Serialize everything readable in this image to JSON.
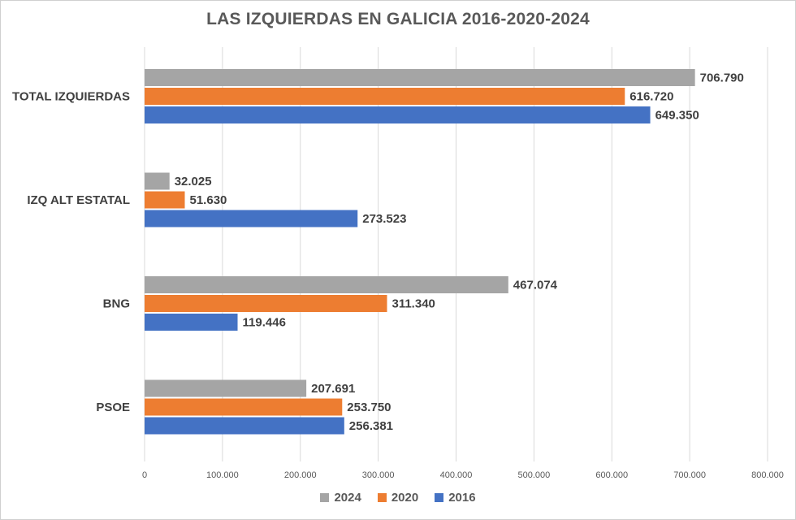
{
  "chart_data": {
    "type": "bar",
    "orientation": "horizontal",
    "title": "LAS IZQUIERDAS EN GALICIA 2016-2020-2024",
    "categories": [
      "TOTAL IZQUIERDAS",
      "IZQ ALT ESTATAL",
      "BNG",
      "PSOE"
    ],
    "series": [
      {
        "name": "2024",
        "color": "#a5a5a5",
        "values": [
          706790,
          32025,
          467074,
          207691
        ],
        "labels": [
          "706.790",
          "32.025",
          "467.074",
          "207.691"
        ]
      },
      {
        "name": "2020",
        "color": "#ed7d31",
        "values": [
          616720,
          51630,
          311340,
          253750
        ],
        "labels": [
          "616.720",
          "51.630",
          "311.340",
          "253.750"
        ]
      },
      {
        "name": "2016",
        "color": "#4472c4",
        "values": [
          649350,
          273523,
          119446,
          256381
        ],
        "labels": [
          "649.350",
          "273.523",
          "119.446",
          "256.381"
        ]
      }
    ],
    "xlim": [
      0,
      800000
    ],
    "xticks": [
      0,
      100000,
      200000,
      300000,
      400000,
      500000,
      600000,
      700000,
      800000
    ],
    "xtick_labels": [
      "0",
      "100.000",
      "200.000",
      "300.000",
      "400.000",
      "500.000",
      "600.000",
      "700.000",
      "800.000"
    ],
    "grid": true,
    "legend_position": "bottom",
    "legend_order": [
      "2024",
      "2020",
      "2016"
    ]
  }
}
